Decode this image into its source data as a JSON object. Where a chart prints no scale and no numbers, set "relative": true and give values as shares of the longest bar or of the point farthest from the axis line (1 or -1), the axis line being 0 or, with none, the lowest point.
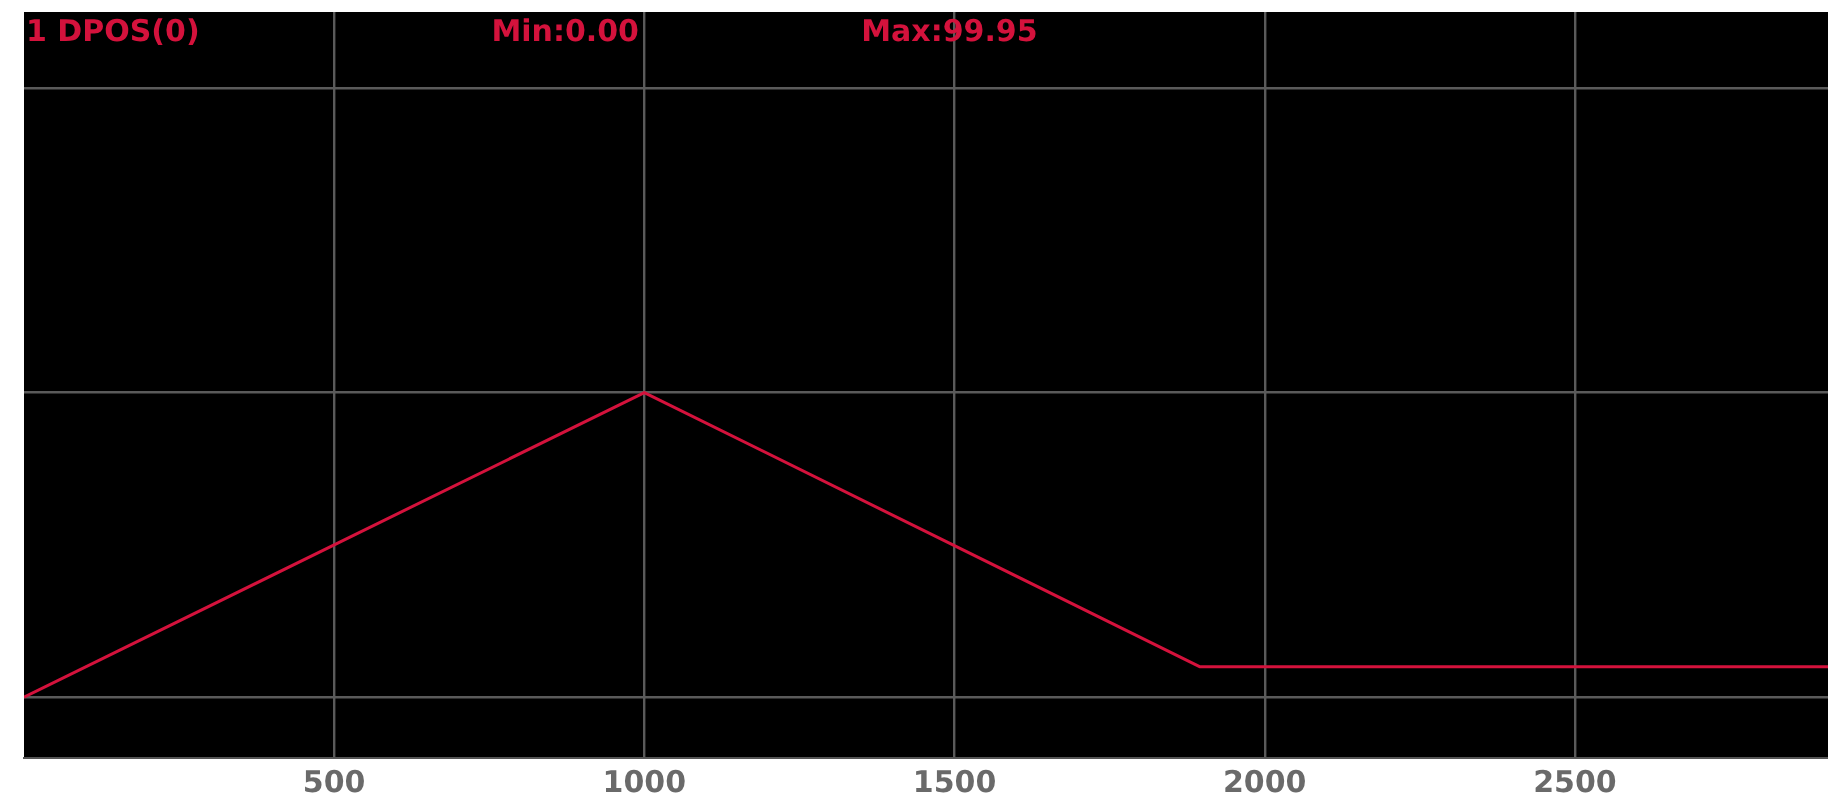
{
  "chart_data": {
    "type": "line",
    "annotations": [
      "1 DPOS(0)",
      "Min:0.00",
      "Max:99.95"
    ],
    "x": [
      0,
      1000,
      1895,
      2908
    ],
    "series": [
      {
        "color": "#d4123c",
        "values": [
          0,
          1,
          0.1,
          0.1
        ]
      }
    ],
    "relative": true,
    "xlim": [
      0,
      2908
    ],
    "xticks": [
      500,
      1000,
      1500,
      2000,
      2500
    ],
    "tick_labels": "x",
    "grid": true,
    "legend": false,
    "marker": "none",
    "line_style": "solid"
  }
}
